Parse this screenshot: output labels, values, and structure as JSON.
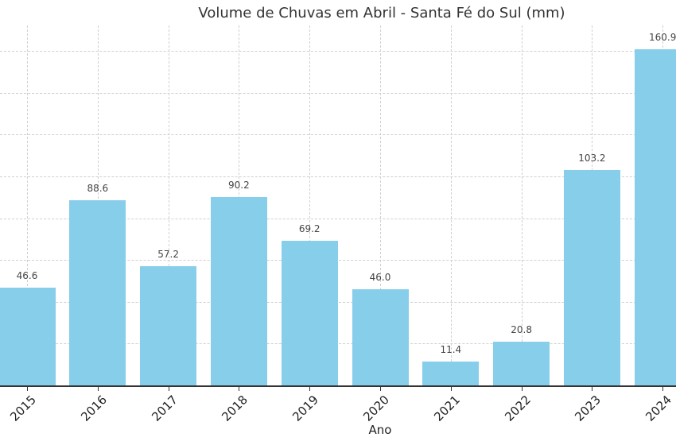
{
  "chart_data": {
    "type": "bar",
    "title": "Volume de Chuvas em Abril - Santa Fé do Sul (mm)",
    "xlabel": "Ano",
    "ylabel": "",
    "categories": [
      "2015",
      "2016",
      "2017",
      "2018",
      "2019",
      "2020",
      "2021",
      "2022",
      "2023",
      "2024"
    ],
    "values": [
      46.6,
      88.6,
      57.2,
      90.2,
      69.2,
      46.0,
      11.4,
      20.8,
      103.2,
      160.9
    ],
    "value_labels": [
      "46.6",
      "88.6",
      "57.2",
      "90.2",
      "69.2",
      "46.0",
      "11.4",
      "20.8",
      "103.2",
      "160.9"
    ],
    "ylim": [
      0,
      172
    ],
    "y_gridlines": [
      20,
      40,
      60,
      80,
      100,
      120,
      140,
      160
    ],
    "grid": true,
    "legend": null,
    "bar_color": "#87ceeb"
  }
}
